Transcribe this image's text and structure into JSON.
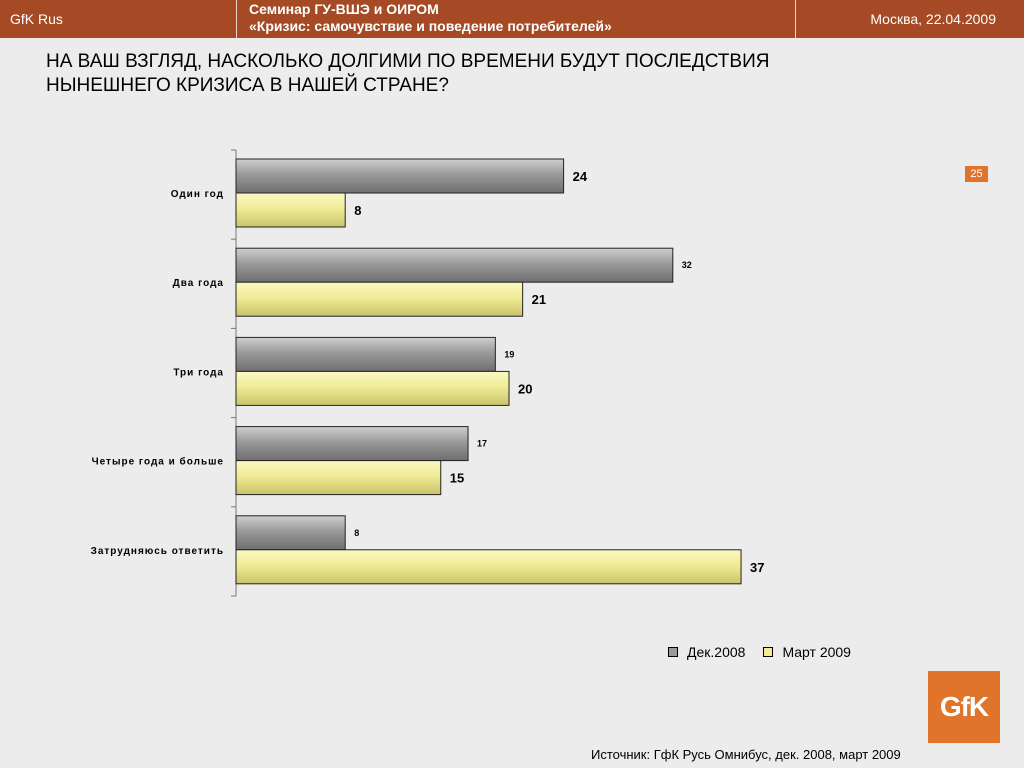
{
  "header": {
    "left": "GfK Rus",
    "title_line1": "Семинар ГУ-ВШЭ и ОИРОМ",
    "title_line2": "«Кризис: самочувствие и поведение потребителей»",
    "right": "Москва, 22.04.2009"
  },
  "question": "НА ВАШ ВЗГЛЯД,  НАСКОЛЬКО ДОЛГИМИ ПО ВРЕМЕНИ БУДУТ ПОСЛЕДСТВИЯ НЫНЕШНЕГО КРИЗИСА В НАШЕЙ СТРАНЕ?",
  "page_number": "25",
  "logo_text": "GfK",
  "source": "Источник: ГфК Русь Омнибус, дек. 2008, март 2009",
  "chart_data": {
    "type": "bar",
    "orientation": "horizontal",
    "categories": [
      "Один год",
      "Два года",
      "Три года",
      "Четыре года и больше",
      "Затрудняюсь ответить"
    ],
    "series": [
      {
        "name": "Дек.2008",
        "values": [
          24,
          32,
          19,
          17,
          8
        ],
        "color": "#9a9a9a"
      },
      {
        "name": "Март 2009",
        "values": [
          8,
          21,
          20,
          15,
          37
        ],
        "color": "#f0ec96"
      }
    ],
    "xlim": [
      0,
      40
    ],
    "grid": false,
    "legend_position": "bottom-right"
  }
}
